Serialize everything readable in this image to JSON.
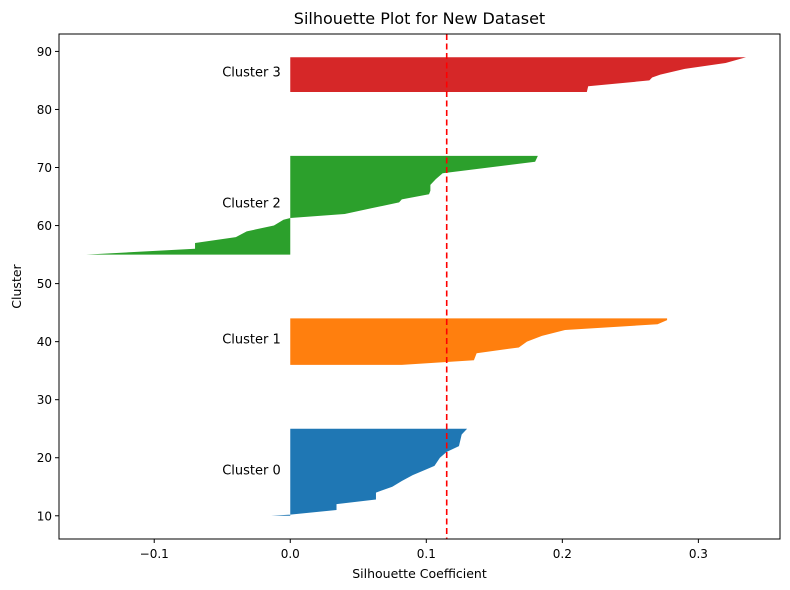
{
  "chart_data": {
    "type": "area",
    "title": "Silhouette Plot for New Dataset",
    "xlabel": "Silhouette Coefficient",
    "ylabel": "Cluster",
    "xlim": [
      -0.17,
      0.36
    ],
    "ylim": [
      6,
      93
    ],
    "xticks": [
      -0.1,
      0.0,
      0.1,
      0.2,
      0.3
    ],
    "xtick_labels": [
      "−0.1",
      "0.0",
      "0.1",
      "0.2",
      "0.3"
    ],
    "yticks": [
      10,
      20,
      30,
      40,
      50,
      60,
      70,
      80,
      90
    ],
    "ytick_labels": [
      "10",
      "20",
      "30",
      "40",
      "50",
      "60",
      "70",
      "80",
      "90"
    ],
    "grid": false,
    "average_silhouette": 0.115,
    "average_line_color": "#ff0000",
    "series": [
      {
        "name": "Cluster 0",
        "color": "#1f77b4",
        "label_y": 18,
        "points": [
          [
            -0.014,
            10
          ],
          [
            0.0,
            10.2
          ],
          [
            0.034,
            11
          ],
          [
            0.034,
            12
          ],
          [
            0.063,
            12.8
          ],
          [
            0.063,
            14
          ],
          [
            0.075,
            15
          ],
          [
            0.082,
            16
          ],
          [
            0.09,
            17
          ],
          [
            0.1,
            18
          ],
          [
            0.106,
            18.6
          ],
          [
            0.11,
            20
          ],
          [
            0.115,
            21
          ],
          [
            0.124,
            22
          ],
          [
            0.125,
            23
          ],
          [
            0.126,
            24
          ],
          [
            0.13,
            25
          ]
        ]
      },
      {
        "name": "Cluster 1",
        "color": "#ff7f0e",
        "label_y": 40.5,
        "points": [
          [
            0.082,
            36
          ],
          [
            0.135,
            36.8
          ],
          [
            0.137,
            38
          ],
          [
            0.168,
            39
          ],
          [
            0.174,
            40
          ],
          [
            0.185,
            41
          ],
          [
            0.202,
            42
          ],
          [
            0.27,
            43
          ],
          [
            0.277,
            43.7
          ],
          [
            0.277,
            44
          ]
        ]
      },
      {
        "name": "Cluster 2",
        "color": "#2ca02c",
        "label_y": 64,
        "points": [
          [
            -0.15,
            55
          ],
          [
            -0.07,
            56
          ],
          [
            -0.07,
            57
          ],
          [
            -0.04,
            58
          ],
          [
            -0.032,
            59
          ],
          [
            -0.012,
            60
          ],
          [
            -0.005,
            61
          ],
          [
            0.0,
            61.3
          ],
          [
            0.04,
            62
          ],
          [
            0.06,
            63
          ],
          [
            0.08,
            64
          ],
          [
            0.082,
            64.5
          ],
          [
            0.102,
            65.4
          ],
          [
            0.103,
            66
          ],
          [
            0.103,
            67
          ],
          [
            0.107,
            68
          ],
          [
            0.112,
            69
          ],
          [
            0.18,
            71
          ],
          [
            0.182,
            72
          ]
        ]
      },
      {
        "name": "Cluster 3",
        "color": "#d62728",
        "label_y": 86.5,
        "points": [
          [
            0.218,
            83
          ],
          [
            0.219,
            84
          ],
          [
            0.264,
            85
          ],
          [
            0.266,
            85.5
          ],
          [
            0.272,
            86
          ],
          [
            0.29,
            87
          ],
          [
            0.32,
            88
          ],
          [
            0.335,
            89
          ]
        ]
      }
    ]
  }
}
